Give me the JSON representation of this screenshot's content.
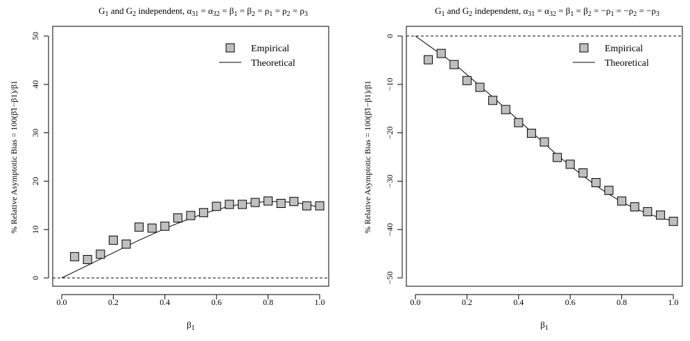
{
  "chart_data": [
    {
      "type": "scatter",
      "title": {
        "lead": "G",
        "g1_sub": "1",
        "and": " and G",
        "g2_sub": "2",
        "mid": " independent,   ",
        "eq": "α31 = α32 = β1 = β2 = ρ1 = ρ2 = ρ3"
      },
      "xlabel": "β1",
      "ylabel": "% Relative Asymptotic Bias = 100(β̃1−β1)/β1",
      "xlim": [
        0,
        1
      ],
      "ylim": [
        0,
        50
      ],
      "x_ticks": [
        "0.0",
        "0.2",
        "0.4",
        "0.6",
        "0.8",
        "1.0"
      ],
      "y_ticks": [
        "0",
        "10",
        "20",
        "30",
        "40",
        "50"
      ],
      "reference_line": 0,
      "legend": {
        "placement": "top-right",
        "entries": [
          "Empirical",
          "Theoretical"
        ]
      },
      "series": [
        {
          "name": "Empirical",
          "x": [
            0.05,
            0.1,
            0.15,
            0.2,
            0.25,
            0.3,
            0.35,
            0.4,
            0.45,
            0.5,
            0.55,
            0.6,
            0.65,
            0.7,
            0.75,
            0.8,
            0.85,
            0.9,
            0.95,
            1.0
          ],
          "y": [
            4.4,
            3.8,
            4.9,
            7.8,
            7.0,
            10.5,
            10.3,
            10.7,
            12.4,
            12.9,
            13.5,
            14.8,
            15.2,
            15.2,
            15.6,
            15.9,
            15.4,
            15.8,
            14.9,
            14.9
          ]
        },
        {
          "name": "Theoretical",
          "x": [
            0.0,
            0.05,
            0.1,
            0.15,
            0.2,
            0.25,
            0.3,
            0.35,
            0.4,
            0.45,
            0.5,
            0.55,
            0.6,
            0.65,
            0.7,
            0.75,
            0.8,
            0.85,
            0.9,
            0.95,
            1.0
          ],
          "y": [
            0.0,
            1.3,
            2.6,
            3.9,
            5.2,
            6.5,
            7.8,
            9.0,
            10.2,
            11.3,
            12.3,
            13.3,
            14.1,
            14.8,
            15.3,
            15.6,
            15.8,
            15.8,
            15.6,
            15.2,
            14.6
          ]
        }
      ]
    },
    {
      "type": "scatter",
      "title": {
        "lead": "G",
        "g1_sub": "1",
        "and": " and G",
        "g2_sub": "2",
        "mid": " independent,   ",
        "eq": "α31 = α32 = β1 = β2 = −ρ1 = −ρ2 = −ρ3"
      },
      "xlabel": "β1",
      "ylabel": "% Relative Asymptotic Bias = 100(β̃1−β1)/β1",
      "xlim": [
        0,
        1
      ],
      "ylim": [
        -50,
        0
      ],
      "x_ticks": [
        "0.0",
        "0.2",
        "0.4",
        "0.6",
        "0.8",
        "1.0"
      ],
      "y_ticks": [
        "0",
        "-10",
        "-20",
        "-30",
        "-40",
        "-50"
      ],
      "reference_line": 0,
      "legend": {
        "placement": "top-right",
        "entries": [
          "Empirical",
          "Theoretical"
        ]
      },
      "series": [
        {
          "name": "Empirical",
          "x": [
            0.05,
            0.1,
            0.15,
            0.2,
            0.25,
            0.3,
            0.35,
            0.4,
            0.45,
            0.5,
            0.55,
            0.6,
            0.65,
            0.7,
            0.75,
            0.8,
            0.85,
            0.9,
            0.95,
            1.0
          ],
          "y": [
            -4.9,
            -3.6,
            -5.9,
            -9.2,
            -10.6,
            -13.3,
            -15.2,
            -17.9,
            -20.1,
            -21.9,
            -25.1,
            -26.5,
            -28.3,
            -30.3,
            -31.9,
            -34.1,
            -35.3,
            -36.3,
            -37.0,
            -38.3
          ]
        },
        {
          "name": "Theoretical",
          "x": [
            0.0,
            0.05,
            0.1,
            0.15,
            0.2,
            0.25,
            0.3,
            0.35,
            0.4,
            0.45,
            0.5,
            0.55,
            0.6,
            0.65,
            0.7,
            0.75,
            0.8,
            0.85,
            0.9,
            0.95,
            1.0
          ],
          "y": [
            0.0,
            -1.9,
            -3.8,
            -5.7,
            -8.0,
            -10.3,
            -12.6,
            -15.0,
            -17.4,
            -19.8,
            -22.2,
            -24.6,
            -26.8,
            -28.9,
            -30.9,
            -32.7,
            -34.3,
            -35.6,
            -36.7,
            -37.6,
            -38.2
          ]
        }
      ]
    }
  ]
}
